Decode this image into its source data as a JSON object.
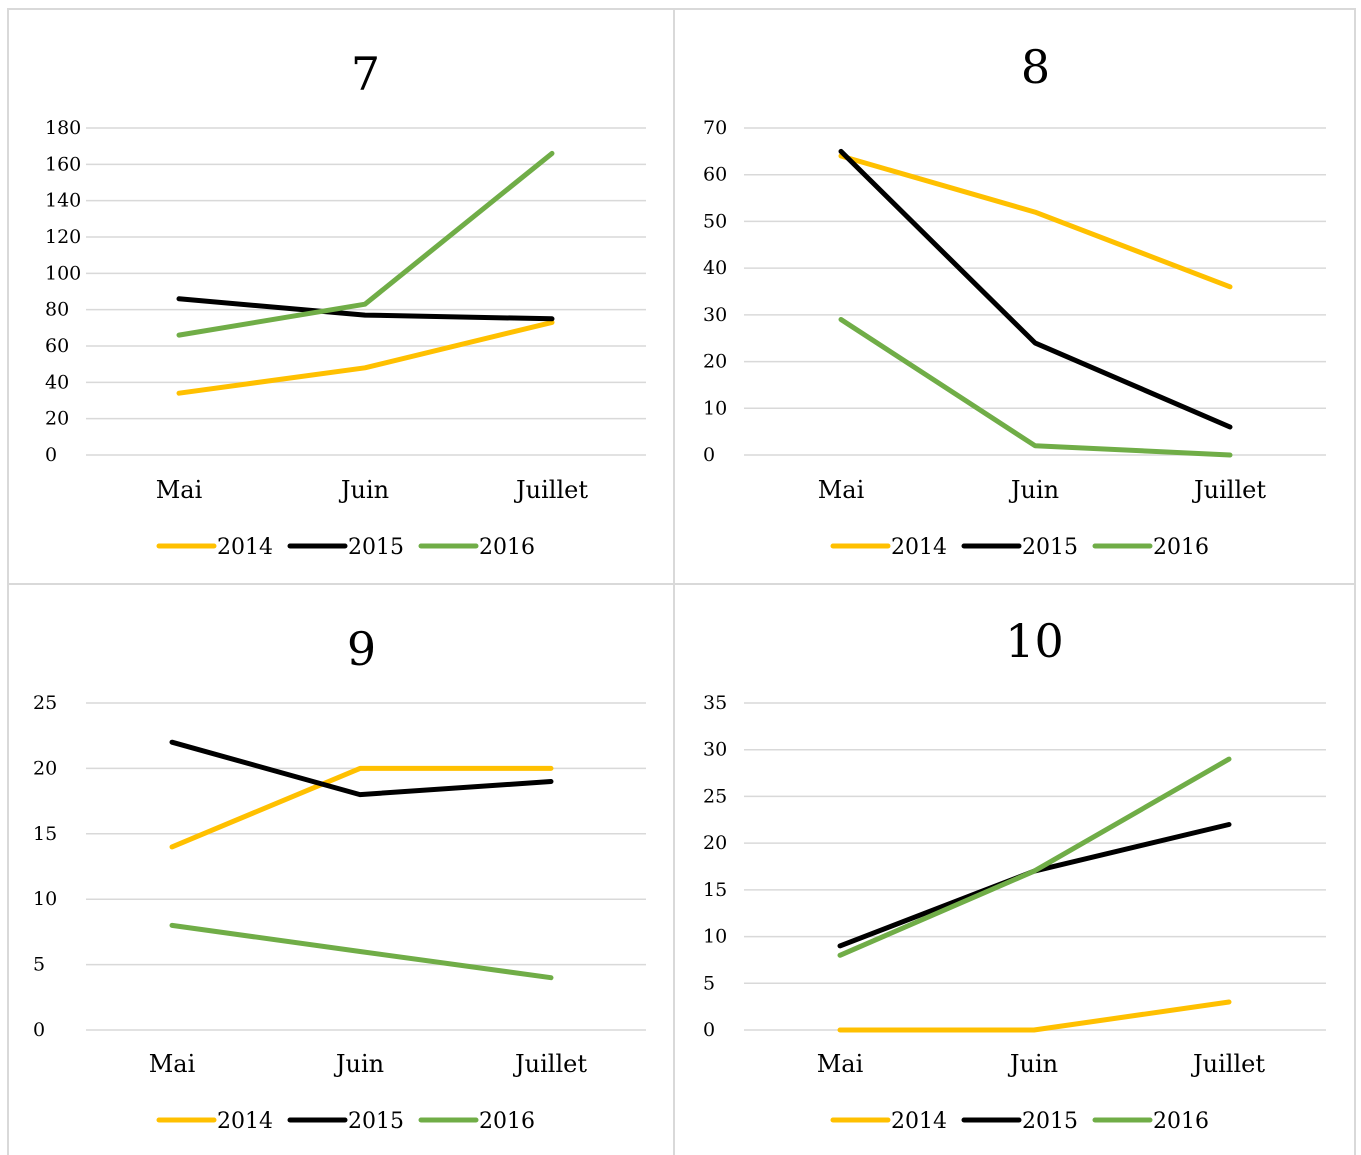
{
  "colors": {
    "2014": "#ffc000",
    "2015": "#000000",
    "2016": "#70ad47",
    "grid": "#d9d9d9"
  },
  "chart_data": [
    {
      "type": "line",
      "title": "7",
      "categories": [
        "Mai",
        "Juin",
        "Juillet"
      ],
      "ylim": [
        0,
        180
      ],
      "yticks": [
        "0",
        "20",
        "40",
        "60",
        "80",
        "100",
        "120",
        "140",
        "160",
        "180"
      ],
      "grid": true,
      "legend": "bottom",
      "series": [
        {
          "name": "2014",
          "values": [
            34,
            48,
            73
          ]
        },
        {
          "name": "2015",
          "values": [
            86,
            77,
            75
          ]
        },
        {
          "name": "2016",
          "values": [
            66,
            83,
            166
          ]
        }
      ]
    },
    {
      "type": "line",
      "title": "8",
      "categories": [
        "Mai",
        "Juin",
        "Juillet"
      ],
      "ylim": [
        0,
        70
      ],
      "yticks": [
        "0",
        "10",
        "20",
        "30",
        "40",
        "50",
        "60",
        "70"
      ],
      "grid": true,
      "legend": "bottom",
      "series": [
        {
          "name": "2014",
          "values": [
            64,
            52,
            36
          ]
        },
        {
          "name": "2015",
          "values": [
            65,
            24,
            6
          ]
        },
        {
          "name": "2016",
          "values": [
            29,
            2,
            0
          ]
        }
      ]
    },
    {
      "type": "line",
      "title": "9",
      "categories": [
        "Mai",
        "Juin",
        "Juillet"
      ],
      "ylim": [
        0,
        25
      ],
      "yticks": [
        "0",
        "5",
        "10",
        "15",
        "20",
        "25"
      ],
      "grid": true,
      "legend": "bottom",
      "series": [
        {
          "name": "2014",
          "values": [
            14,
            20,
            20
          ]
        },
        {
          "name": "2015",
          "values": [
            22,
            18,
            19
          ]
        },
        {
          "name": "2016",
          "values": [
            8,
            6,
            4
          ]
        }
      ]
    },
    {
      "type": "line",
      "title": "10",
      "categories": [
        "Mai",
        "Juin",
        "Juillet"
      ],
      "ylim": [
        0,
        35
      ],
      "yticks": [
        "0",
        "5",
        "10",
        "15",
        "20",
        "25",
        "30",
        "35"
      ],
      "grid": true,
      "legend": "bottom",
      "series": [
        {
          "name": "2014",
          "values": [
            0,
            0,
            3
          ]
        },
        {
          "name": "2015",
          "values": [
            9,
            17,
            22
          ]
        },
        {
          "name": "2016",
          "values": [
            8,
            17,
            29
          ]
        }
      ]
    }
  ]
}
